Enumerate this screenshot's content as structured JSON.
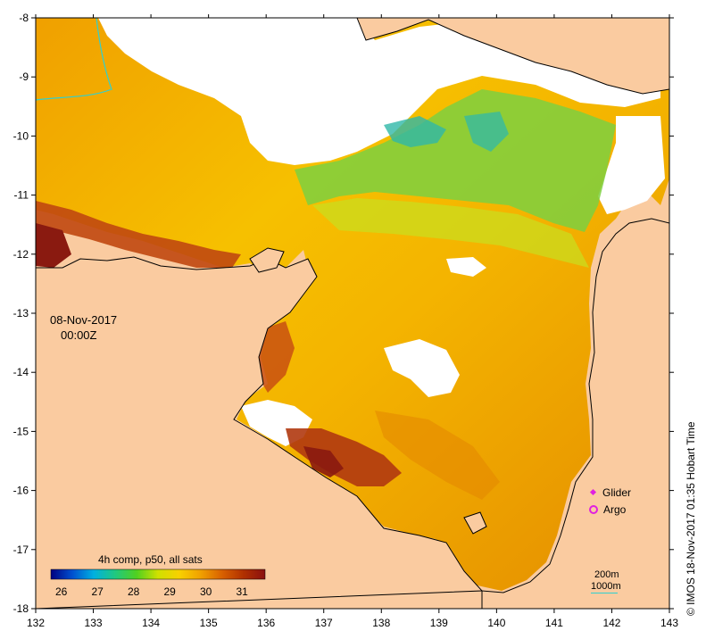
{
  "map": {
    "lon_ticks": [
      "132",
      "133",
      "134",
      "135",
      "136",
      "137",
      "138",
      "139",
      "140",
      "141",
      "142",
      "143"
    ],
    "lat_ticks": [
      "-8",
      "-9",
      "-10",
      "-11",
      "-12",
      "-13",
      "-14",
      "-15",
      "-16",
      "-17",
      "-18"
    ],
    "lon_range": [
      132,
      143
    ],
    "lat_range": [
      -18,
      -8
    ],
    "colors": {
      "land": "#facba0",
      "cloud": "#ffffff",
      "coast": "#000000",
      "contour": "#30d0d0"
    }
  },
  "timestamp": {
    "date": "08-Nov-2017",
    "time": "00:00Z"
  },
  "legend": {
    "glider": "Glider",
    "argo": "Argo",
    "marker_color": "#e020e0"
  },
  "depth": {
    "contour_200": "200m",
    "contour_1000": "1000m"
  },
  "colorbar": {
    "title": "4h comp, p50, all sats",
    "ticks": [
      "26",
      "27",
      "28",
      "29",
      "30",
      "31"
    ],
    "stops": [
      "#000080",
      "#0050d0",
      "#00b0e0",
      "#20c880",
      "#50d020",
      "#d0e000",
      "#f8d000",
      "#f0a000",
      "#d86000",
      "#b03000",
      "#8a1010"
    ]
  },
  "credit": "© IMOS 18-Nov-2017 01:35 Hobart Time"
}
